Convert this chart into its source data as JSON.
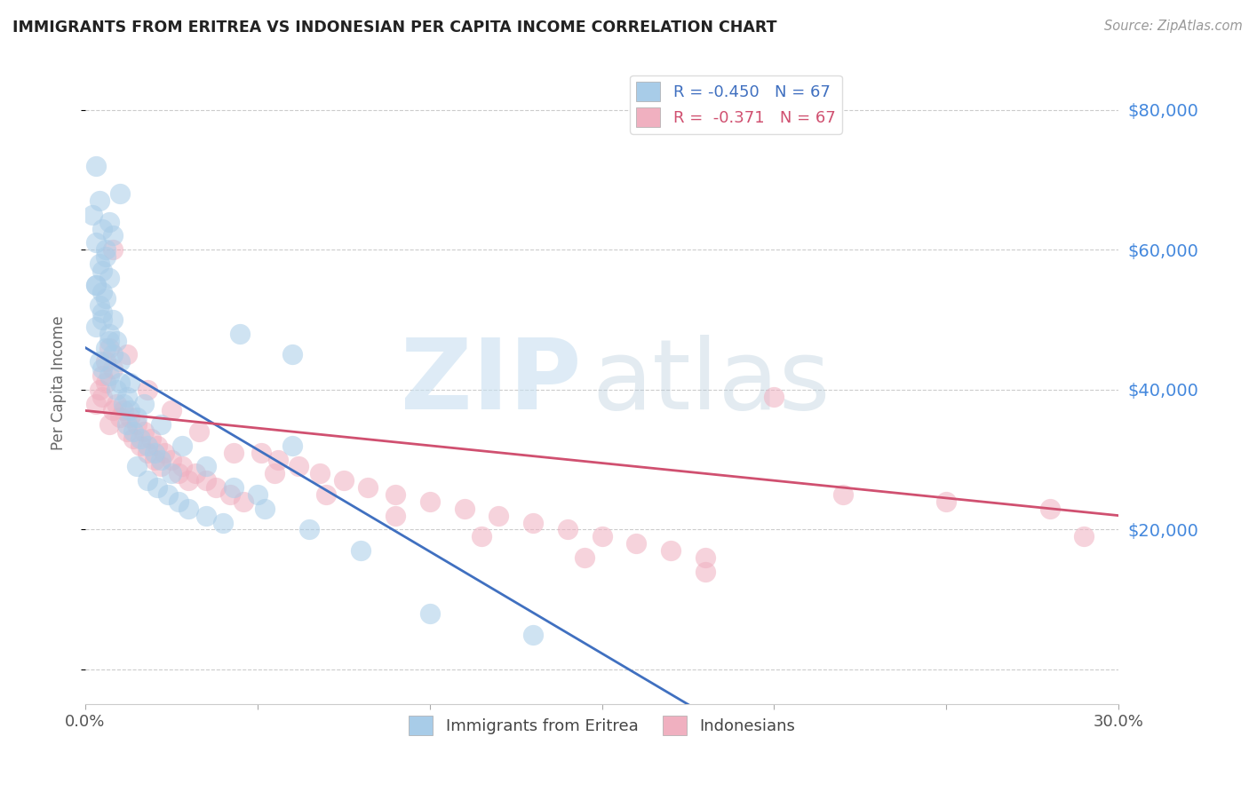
{
  "title": "IMMIGRANTS FROM ERITREA VS INDONESIAN PER CAPITA INCOME CORRELATION CHART",
  "source": "Source: ZipAtlas.com",
  "ylabel": "Per Capita Income",
  "xlim": [
    0.0,
    0.3
  ],
  "ylim": [
    -5000,
    87000
  ],
  "yticks": [
    0,
    20000,
    40000,
    60000,
    80000
  ],
  "xticks": [
    0.0,
    0.05,
    0.1,
    0.15,
    0.2,
    0.25,
    0.3
  ],
  "xtick_labels": [
    "0.0%",
    "",
    "",
    "",
    "",
    "",
    "30.0%"
  ],
  "legend_blue_label": "R = -0.450   N = 67",
  "legend_pink_label": "R =  -0.371   N = 67",
  "series_blue_label": "Immigrants from Eritrea",
  "series_pink_label": "Indonesians",
  "blue_color": "#a8cce8",
  "pink_color": "#f0b0c0",
  "blue_line_color": "#4070c0",
  "pink_line_color": "#d05070",
  "blue_line_x0": 0.0,
  "blue_line_y0": 46000,
  "blue_line_x1": 0.175,
  "blue_line_y1": -5000,
  "pink_line_x0": 0.0,
  "pink_line_y0": 37000,
  "pink_line_x1": 0.3,
  "pink_line_y1": 22000,
  "blue_scatter_x": [
    0.003,
    0.01,
    0.002,
    0.005,
    0.004,
    0.007,
    0.003,
    0.006,
    0.004,
    0.008,
    0.005,
    0.006,
    0.003,
    0.007,
    0.005,
    0.004,
    0.006,
    0.008,
    0.003,
    0.005,
    0.007,
    0.009,
    0.006,
    0.004,
    0.008,
    0.005,
    0.007,
    0.01,
    0.012,
    0.009,
    0.011,
    0.013,
    0.015,
    0.012,
    0.014,
    0.016,
    0.018,
    0.02,
    0.022,
    0.025,
    0.015,
    0.018,
    0.021,
    0.024,
    0.027,
    0.03,
    0.035,
    0.04,
    0.05,
    0.06,
    0.003,
    0.005,
    0.007,
    0.01,
    0.013,
    0.017,
    0.022,
    0.028,
    0.035,
    0.043,
    0.052,
    0.065,
    0.08,
    0.1,
    0.13,
    0.06,
    0.045
  ],
  "blue_scatter_y": [
    72000,
    68000,
    65000,
    63000,
    67000,
    64000,
    61000,
    59000,
    58000,
    62000,
    57000,
    60000,
    55000,
    56000,
    54000,
    52000,
    53000,
    50000,
    49000,
    51000,
    48000,
    47000,
    46000,
    44000,
    45000,
    43000,
    42000,
    41000,
    39000,
    40000,
    38000,
    37000,
    36000,
    35000,
    34000,
    33000,
    32000,
    31000,
    30000,
    28000,
    29000,
    27000,
    26000,
    25000,
    24000,
    23000,
    22000,
    21000,
    25000,
    32000,
    55000,
    50000,
    47000,
    44000,
    41000,
    38000,
    35000,
    32000,
    29000,
    26000,
    23000,
    20000,
    17000,
    8000,
    5000,
    45000,
    48000
  ],
  "pink_scatter_x": [
    0.003,
    0.005,
    0.006,
    0.004,
    0.007,
    0.008,
    0.006,
    0.005,
    0.008,
    0.01,
    0.007,
    0.009,
    0.011,
    0.013,
    0.012,
    0.015,
    0.014,
    0.017,
    0.016,
    0.019,
    0.018,
    0.021,
    0.02,
    0.023,
    0.025,
    0.022,
    0.027,
    0.03,
    0.028,
    0.032,
    0.035,
    0.038,
    0.042,
    0.046,
    0.051,
    0.056,
    0.062,
    0.068,
    0.075,
    0.082,
    0.09,
    0.1,
    0.11,
    0.12,
    0.13,
    0.14,
    0.15,
    0.16,
    0.17,
    0.18,
    0.2,
    0.22,
    0.25,
    0.28,
    0.008,
    0.012,
    0.018,
    0.025,
    0.033,
    0.043,
    0.055,
    0.07,
    0.09,
    0.115,
    0.145,
    0.18,
    0.29
  ],
  "pink_scatter_y": [
    38000,
    42000,
    44000,
    40000,
    46000,
    43000,
    41000,
    39000,
    37000,
    36000,
    35000,
    38000,
    37000,
    36000,
    34000,
    35000,
    33000,
    34000,
    32000,
    33000,
    31000,
    32000,
    30000,
    31000,
    30000,
    29000,
    28000,
    27000,
    29000,
    28000,
    27000,
    26000,
    25000,
    24000,
    31000,
    30000,
    29000,
    28000,
    27000,
    26000,
    25000,
    24000,
    23000,
    22000,
    21000,
    20000,
    19000,
    18000,
    17000,
    16000,
    39000,
    25000,
    24000,
    23000,
    60000,
    45000,
    40000,
    37000,
    34000,
    31000,
    28000,
    25000,
    22000,
    19000,
    16000,
    14000,
    19000
  ]
}
